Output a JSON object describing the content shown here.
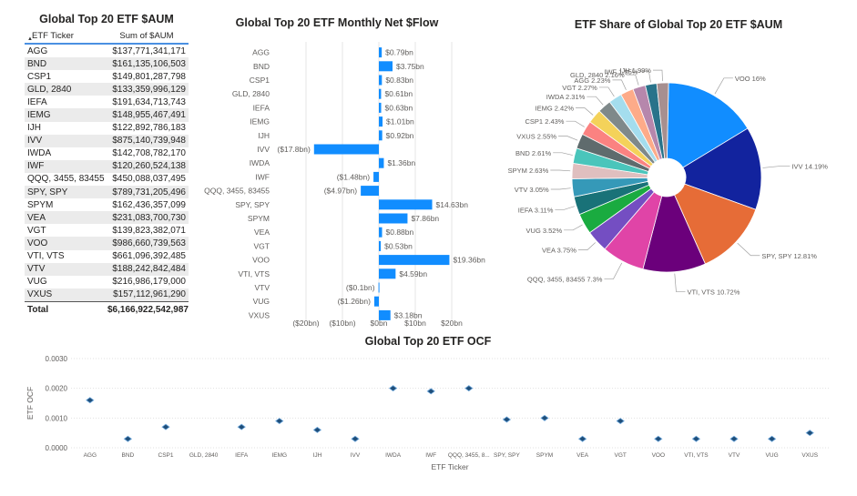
{
  "table": {
    "title": "Global Top 20 ETF $AUM",
    "col_ticker": "ETF Ticker",
    "col_aum": "Sum of $AUM",
    "sort_icon": "sort-up-triangle",
    "rows": [
      {
        "ticker": "AGG",
        "aum": "$137,771,341,171"
      },
      {
        "ticker": "BND",
        "aum": "$161,135,106,503"
      },
      {
        "ticker": "CSP1",
        "aum": "$149,801,287,798"
      },
      {
        "ticker": "GLD, 2840",
        "aum": "$133,359,996,129"
      },
      {
        "ticker": "IEFA",
        "aum": "$191,634,713,743"
      },
      {
        "ticker": "IEMG",
        "aum": "$148,955,467,491"
      },
      {
        "ticker": "IJH",
        "aum": "$122,892,786,183"
      },
      {
        "ticker": "IVV",
        "aum": "$875,140,739,948"
      },
      {
        "ticker": "IWDA",
        "aum": "$142,708,782,170"
      },
      {
        "ticker": "IWF",
        "aum": "$120,260,524,138"
      },
      {
        "ticker": "QQQ, 3455, 83455",
        "aum": "$450,088,037,495"
      },
      {
        "ticker": "SPY, SPY",
        "aum": "$789,731,205,496"
      },
      {
        "ticker": "SPYM",
        "aum": "$162,436,357,099"
      },
      {
        "ticker": "VEA",
        "aum": "$231,083,700,730"
      },
      {
        "ticker": "VGT",
        "aum": "$139,823,382,071"
      },
      {
        "ticker": "VOO",
        "aum": "$986,660,739,563"
      },
      {
        "ticker": "VTI, VTS",
        "aum": "$661,096,392,485"
      },
      {
        "ticker": "VTV",
        "aum": "$188,242,842,484"
      },
      {
        "ticker": "VUG",
        "aum": "$216,986,179,000"
      },
      {
        "ticker": "VXUS",
        "aum": "$157,112,961,290"
      }
    ],
    "total_label": "Total",
    "total_value": "$6,166,922,542,987"
  },
  "chart_data": [
    {
      "type": "bar",
      "orientation": "horizontal",
      "title": "Global Top 20 ETF Monthly Net $Flow",
      "categories": [
        "AGG",
        "BND",
        "CSP1",
        "GLD, 2840",
        "IEFA",
        "IEMG",
        "IJH",
        "IVV",
        "IWDA",
        "IWF",
        "QQQ, 3455, 83455",
        "SPY, SPY",
        "SPYM",
        "VEA",
        "VGT",
        "VOO",
        "VTI, VTS",
        "VTV",
        "VUG",
        "VXUS"
      ],
      "values": [
        0.79,
        3.75,
        0.83,
        0.61,
        0.63,
        1.01,
        0.92,
        -17.8,
        1.36,
        -1.48,
        -4.97,
        14.63,
        7.86,
        0.88,
        0.53,
        19.36,
        4.59,
        -0.1,
        -1.26,
        3.18
      ],
      "data_labels": [
        "$0.79bn",
        "$3.75bn",
        "$0.83bn",
        "$0.61bn",
        "$0.63bn",
        "$1.01bn",
        "$0.92bn",
        "($17.8bn)",
        "$1.36bn",
        "($1.48bn)",
        "($4.97bn)",
        "$14.63bn",
        "$7.86bn",
        "$0.88bn",
        "$0.53bn",
        "$19.36bn",
        "$4.59bn",
        "($0.1bn)",
        "($1.26bn)",
        "$3.18bn"
      ],
      "x_ticks": [
        -20,
        -10,
        0,
        10,
        20
      ],
      "x_tick_labels": [
        "($20bn)",
        "($10bn)",
        "$0bn",
        "$10bn",
        "$20bn"
      ],
      "xlim": [
        -25,
        25
      ],
      "color": "#118DFF"
    },
    {
      "type": "pie",
      "variant": "donut",
      "title": "ETF Share of Global Top 20 ETF $AUM",
      "slices": [
        {
          "name": "VOO",
          "value": 16,
          "label": "VOO 16%",
          "color": "#118DFF"
        },
        {
          "name": "IVV",
          "value": 14.19,
          "label": "IVV 14.19%",
          "color": "#12239E"
        },
        {
          "name": "SPY, SPY",
          "value": 12.81,
          "label": "SPY, SPY 12.81%",
          "color": "#E66C37"
        },
        {
          "name": "VTI, VTS",
          "value": 10.72,
          "label": "VTI, VTS 10.72%",
          "color": "#6B007B"
        },
        {
          "name": "QQQ, 3455, 83455",
          "value": 7.3,
          "label": "QQQ, 3455, 83455 7.3%",
          "color": "#E044A7"
        },
        {
          "name": "VEA",
          "value": 3.75,
          "label": "VEA 3.75%",
          "color": "#744EC2"
        },
        {
          "name": "VUG",
          "value": 3.52,
          "label": "VUG 3.52%",
          "color": "#1AAB40"
        },
        {
          "name": "IEFA",
          "value": 3.11,
          "label": "IEFA 3.11%",
          "color": "#197278"
        },
        {
          "name": "VTV",
          "value": 3.05,
          "label": "VTV 3.05%",
          "color": "#3599B8"
        },
        {
          "name": "SPYM",
          "value": 2.63,
          "label": "SPYM 2.63%",
          "color": "#DFBFBF"
        },
        {
          "name": "BND",
          "value": 2.61,
          "label": "BND 2.61%",
          "color": "#4AC5BB"
        },
        {
          "name": "VXUS",
          "value": 2.55,
          "label": "VXUS 2.55%",
          "color": "#5F6B6D"
        },
        {
          "name": "CSP1",
          "value": 2.43,
          "label": "CSP1 2.43%",
          "color": "#FB8281"
        },
        {
          "name": "IEMG",
          "value": 2.42,
          "label": "IEMG 2.42%",
          "color": "#F4D25A"
        },
        {
          "name": "IWDA",
          "value": 2.31,
          "label": "IWDA 2.31%",
          "color": "#7F898A"
        },
        {
          "name": "VGT",
          "value": 2.27,
          "label": "VGT 2.27%",
          "color": "#A4DDEE"
        },
        {
          "name": "AGG",
          "value": 2.23,
          "label": "AGG 2.23%",
          "color": "#FDAB89"
        },
        {
          "name": "GLD, 2840",
          "value": 2.16,
          "label": "GLD, 2840 2.16%",
          "color": "#B687AC"
        },
        {
          "name": "IWF",
          "value": 1.95,
          "label": "IWF 1.95%",
          "color": "#28738A"
        },
        {
          "name": "IJH",
          "value": 1.99,
          "label": "IJH 1.99%",
          "color": "#A78F8F"
        }
      ]
    },
    {
      "type": "scatter",
      "title": "Global Top 20 ETF OCF",
      "xlabel": "ETF Ticker",
      "ylabel": "ETF OCF",
      "categories": [
        "AGG",
        "BND",
        "CSP1",
        "GLD, 2840",
        "IEFA",
        "IEMG",
        "IJH",
        "IVV",
        "IWDA",
        "IWF",
        "QQQ, 3455, 8...",
        "SPY, SPY",
        "SPYM",
        "VEA",
        "VGT",
        "VOO",
        "VTI, VTS",
        "VTV",
        "VUG",
        "VXUS"
      ],
      "values": [
        0.0016,
        0.0003,
        0.0007,
        null,
        0.0007,
        0.0009,
        0.0006,
        0.0003,
        0.002,
        0.0019,
        0.002,
        0.00095,
        0.001,
        0.0003,
        0.0009,
        0.0003,
        0.0003,
        0.0003,
        0.0003,
        0.0005
      ],
      "y_ticks": [
        0,
        0.001,
        0.002,
        0.003
      ],
      "y_tick_labels": [
        "0.0000",
        "0.0010",
        "0.0020",
        "0.0030"
      ],
      "ylim": [
        0,
        0.003
      ],
      "grid": true,
      "color": "#118DFF"
    }
  ]
}
